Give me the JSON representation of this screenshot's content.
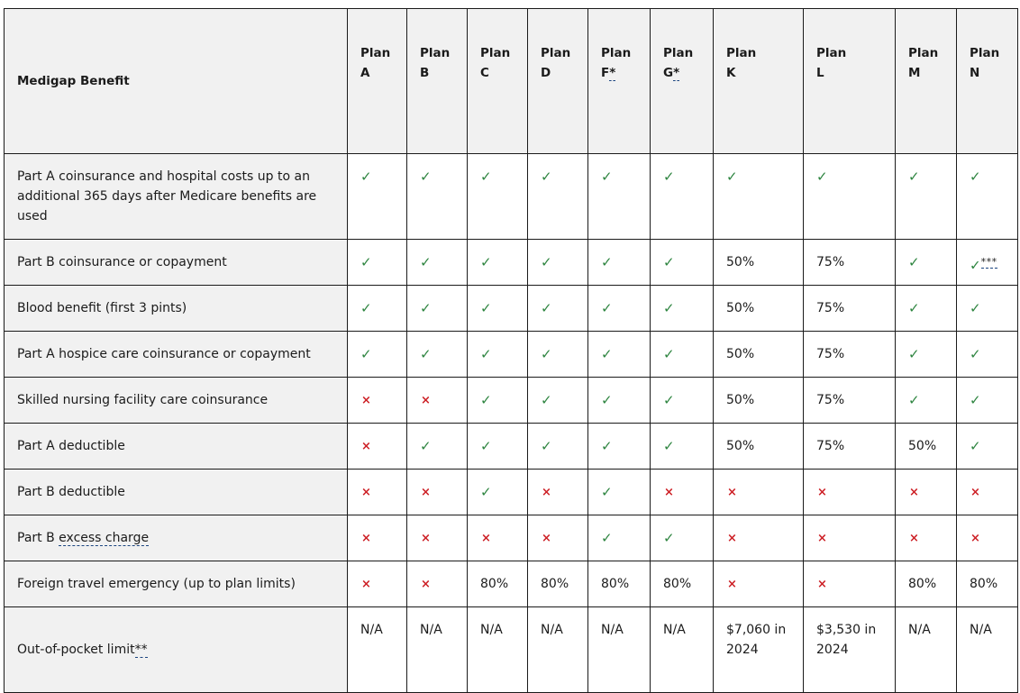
{
  "header": {
    "benefit_label": "Medigap Benefit",
    "plans": [
      {
        "word": "Plan",
        "letter": "A",
        "note": ""
      },
      {
        "word": "Plan",
        "letter": "B",
        "note": ""
      },
      {
        "word": "Plan",
        "letter": "C",
        "note": ""
      },
      {
        "word": "Plan",
        "letter": "D",
        "note": ""
      },
      {
        "word": "Plan",
        "letter": "F",
        "note": "*"
      },
      {
        "word": "Plan",
        "letter": "G",
        "note": "*"
      },
      {
        "word": "Plan",
        "letter": "K",
        "note": ""
      },
      {
        "word": "Plan",
        "letter": "L",
        "note": ""
      },
      {
        "word": "Plan",
        "letter": "M",
        "note": ""
      },
      {
        "word": "Plan",
        "letter": "N",
        "note": ""
      }
    ]
  },
  "symbols": {
    "check": "✓",
    "cross": "×"
  },
  "colors": {
    "check": "#2e8540",
    "cross": "#cd2026",
    "header_bg": "#f1f1f1",
    "link": "#1a4480"
  },
  "rows": [
    {
      "benefit": "Part A coinsurance and hospital costs up to an additional 365 days after Medicare benefits are used",
      "term": "",
      "note": "",
      "cells": [
        "check",
        "check",
        "check",
        "check",
        "check",
        "check",
        "check",
        "check",
        "check",
        "check"
      ],
      "notes": [
        "",
        "",
        "",
        "",
        "",
        "",
        "",
        "",
        "",
        ""
      ]
    },
    {
      "benefit": "Part B coinsurance or copayment",
      "term": "",
      "note": "",
      "cells": [
        "check",
        "check",
        "check",
        "check",
        "check",
        "check",
        "50%",
        "75%",
        "check",
        "check"
      ],
      "notes": [
        "",
        "",
        "",
        "",
        "",
        "",
        "",
        "",
        "",
        "***"
      ]
    },
    {
      "benefit": "Blood benefit (first 3 pints)",
      "term": "",
      "note": "",
      "cells": [
        "check",
        "check",
        "check",
        "check",
        "check",
        "check",
        "50%",
        "75%",
        "check",
        "check"
      ],
      "notes": [
        "",
        "",
        "",
        "",
        "",
        "",
        "",
        "",
        "",
        ""
      ]
    },
    {
      "benefit": "Part A hospice care coinsurance or copayment",
      "term": "",
      "note": "",
      "cells": [
        "check",
        "check",
        "check",
        "check",
        "check",
        "check",
        "50%",
        "75%",
        "check",
        "check"
      ],
      "notes": [
        "",
        "",
        "",
        "",
        "",
        "",
        "",
        "",
        "",
        ""
      ]
    },
    {
      "benefit": "Skilled nursing facility care coinsurance",
      "term": "",
      "note": "",
      "cells": [
        "cross",
        "cross",
        "check",
        "check",
        "check",
        "check",
        "50%",
        "75%",
        "check",
        "check"
      ],
      "notes": [
        "",
        "",
        "",
        "",
        "",
        "",
        "",
        "",
        "",
        ""
      ]
    },
    {
      "benefit": "Part A deductible",
      "term": "",
      "note": "",
      "cells": [
        "cross",
        "check",
        "check",
        "check",
        "check",
        "check",
        "50%",
        "75%",
        "50%",
        "check"
      ],
      "notes": [
        "",
        "",
        "",
        "",
        "",
        "",
        "",
        "",
        "",
        ""
      ]
    },
    {
      "benefit": "Part B deductible",
      "term": "",
      "note": "",
      "cells": [
        "cross",
        "cross",
        "check",
        "cross",
        "check",
        "cross",
        "cross",
        "cross",
        "cross",
        "cross"
      ],
      "notes": [
        "",
        "",
        "",
        "",
        "",
        "",
        "",
        "",
        "",
        ""
      ]
    },
    {
      "benefit": "Part B ",
      "term": "excess charge",
      "note": "",
      "cells": [
        "cross",
        "cross",
        "cross",
        "cross",
        "check",
        "check",
        "cross",
        "cross",
        "cross",
        "cross"
      ],
      "notes": [
        "",
        "",
        "",
        "",
        "",
        "",
        "",
        "",
        "",
        ""
      ]
    },
    {
      "benefit": "Foreign travel emergency (up to plan limits)",
      "term": "",
      "note": "",
      "cells": [
        "cross",
        "cross",
        "80%",
        "80%",
        "80%",
        "80%",
        "cross",
        "cross",
        "80%",
        "80%"
      ],
      "notes": [
        "",
        "",
        "",
        "",
        "",
        "",
        "",
        "",
        "",
        ""
      ]
    },
    {
      "benefit": "Out-of-pocket limit",
      "term": "",
      "note": "**",
      "cells": [
        "N/A",
        "N/A",
        "N/A",
        "N/A",
        "N/A",
        "N/A",
        "$7,060 in 2024",
        "$3,530 in 2024",
        "N/A",
        "N/A"
      ],
      "notes": [
        "",
        "",
        "",
        "",
        "",
        "",
        "",
        "",
        "",
        ""
      ]
    }
  ]
}
